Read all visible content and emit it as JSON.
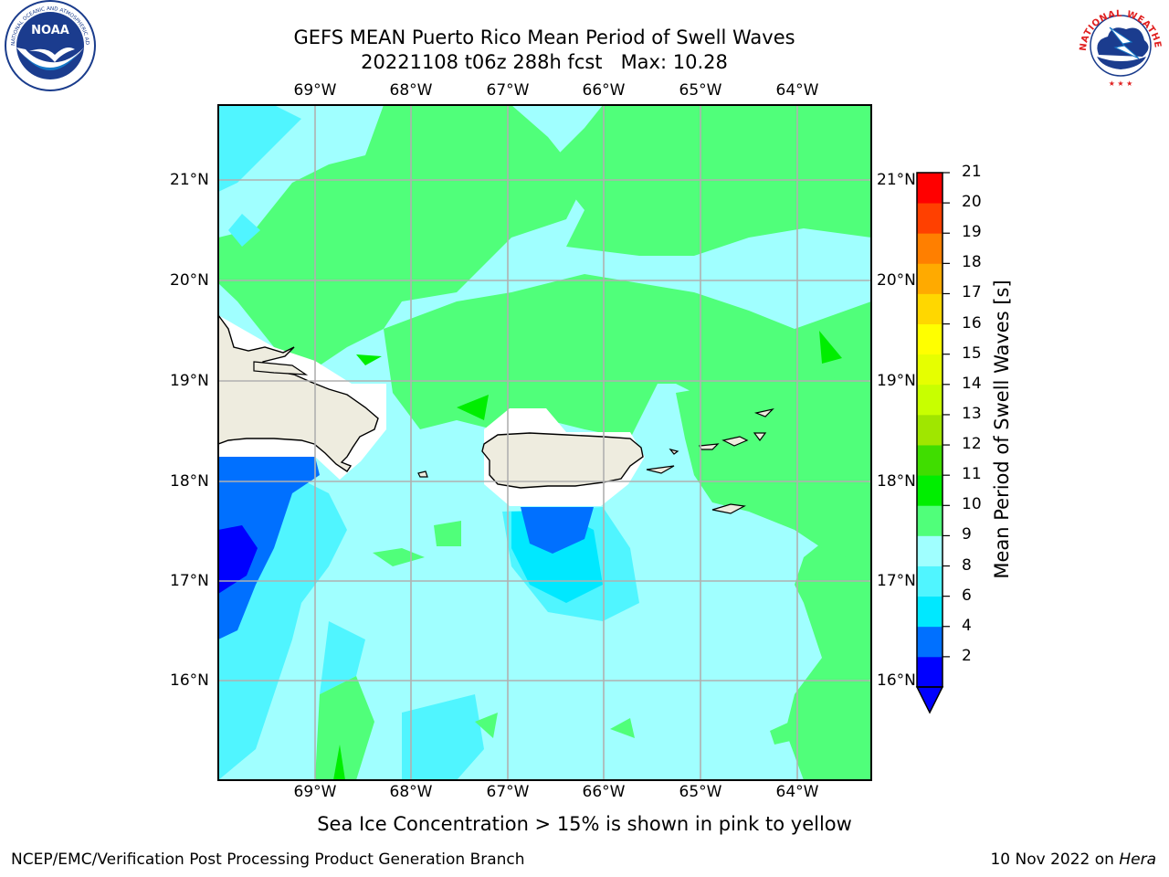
{
  "header": {
    "title_line1": "GEFS MEAN Puerto Rico Mean Period of Swell Waves",
    "title_line2": "20221108 t06z 288h fcst   Max: 10.28"
  },
  "logos": {
    "left": "NOAA",
    "left_ring_text": "NATIONAL OCEANIC AND ATMOSPHERIC ADMINISTRATION · U.S. DEPARTMENT OF COMMERCE",
    "right_ring_text": "NATIONAL WEATHER SERVICE"
  },
  "map": {
    "lon_labels": [
      "69°W",
      "68°W",
      "67°W",
      "66°W",
      "65°W",
      "64°W"
    ],
    "lat_labels": [
      "21°N",
      "20°N",
      "19°N",
      "18°N",
      "17°N",
      "16°N"
    ],
    "land_color": "#eeecdf",
    "grid_color": "#b0b0b0"
  },
  "colorbar": {
    "title": "Mean Period of Swell Waves [s]",
    "ticks": [
      "21",
      "20",
      "19",
      "18",
      "17",
      "16",
      "15",
      "14",
      "13",
      "12",
      "11",
      "10",
      "9",
      "8",
      "6",
      "4",
      "2"
    ],
    "colors": [
      "#0000ff",
      "#0070ff",
      "#00e8ff",
      "#50f5ff",
      "#a0ffff",
      "#50ff7a",
      "#00ee00",
      "#40dd00",
      "#a0e600",
      "#c8ff00",
      "#e6ff00",
      "#ffff00",
      "#ffd700",
      "#ffaa00",
      "#ff7f00",
      "#ff4000",
      "#ff0000"
    ]
  },
  "footer": {
    "note": "Sea Ice Concentration > 15% is shown in pink to yellow",
    "left": "NCEP/EMC/Verification Post Processing Product Generation Branch",
    "right_prefix": "10 Nov 2022 on ",
    "right_machine": "Hera"
  }
}
